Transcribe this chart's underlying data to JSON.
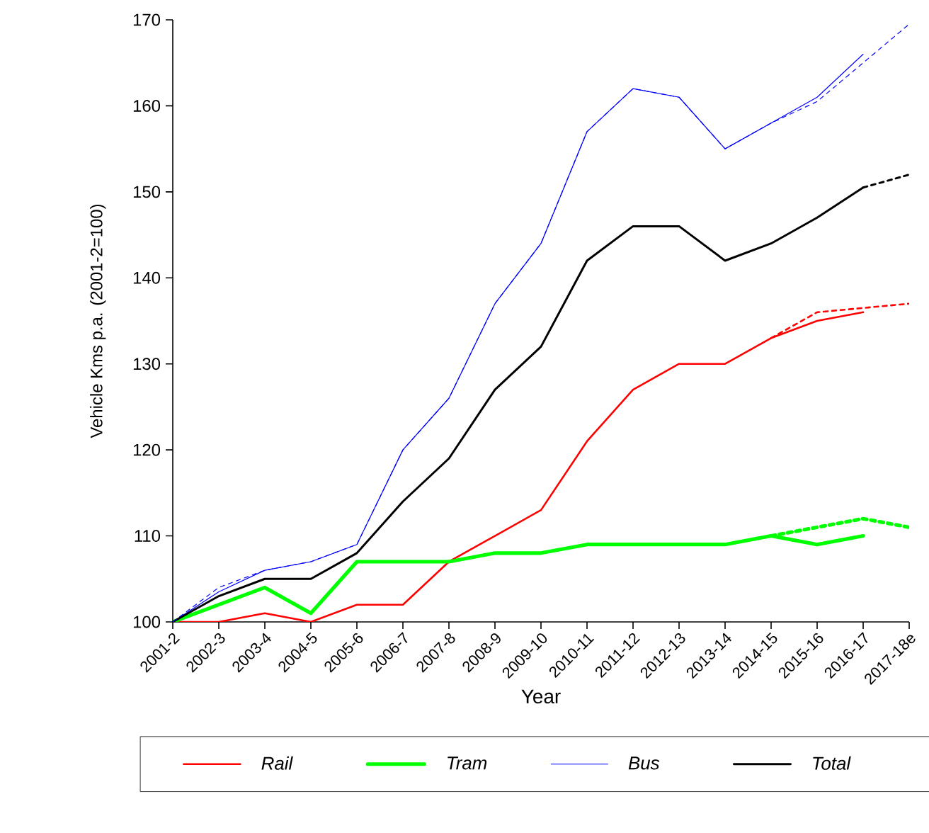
{
  "chart_data": {
    "type": "line",
    "xlabel": "Year",
    "ylabel": "Vehicle Kms p.a. (2001-2=100)",
    "categories": [
      "2001-2",
      "2002-3",
      "2003-4",
      "2004-5",
      "2005-6",
      "2006-7",
      "2007-8",
      "2008-9",
      "2009-10",
      "2010-11",
      "2011-12",
      "2012-13",
      "2013-14",
      "2014-15",
      "2015-16",
      "2016-17",
      "2017-18e"
    ],
    "ylim": [
      100,
      170
    ],
    "yticks": [
      100,
      110,
      120,
      130,
      140,
      150,
      160,
      170
    ],
    "grid": false,
    "legend": "bottom",
    "marker": "none",
    "series": [
      {
        "name": "Rail",
        "color": "#ff0000",
        "line_style": "solid",
        "values": [
          100,
          100,
          101,
          100,
          102,
          102,
          107,
          110,
          113,
          121,
          127,
          130,
          130,
          133,
          135,
          136,
          null
        ]
      },
      {
        "name": "Tram",
        "color": "#00ff00",
        "line_style": "solid",
        "values": [
          100,
          102,
          104,
          101,
          107,
          107,
          107,
          108,
          108,
          109,
          109,
          109,
          109,
          110,
          109,
          110,
          null
        ]
      },
      {
        "name": "Bus",
        "color": "#0000ff",
        "line_style": "solid",
        "values": [
          100,
          103.5,
          106,
          107,
          109,
          120,
          126,
          137,
          144,
          157,
          162,
          161,
          155,
          158,
          161,
          166,
          null
        ]
      },
      {
        "name": "Total",
        "color": "#000000",
        "line_style": "solid",
        "values": [
          100,
          103,
          105,
          105,
          108,
          114,
          119,
          127,
          132,
          142,
          146,
          146,
          142,
          144,
          147,
          150.5,
          null
        ]
      },
      {
        "color": "#ff0000",
        "line_style": "dashed",
        "values": [
          null,
          null,
          null,
          null,
          null,
          null,
          null,
          null,
          null,
          null,
          null,
          null,
          null,
          133,
          136,
          136.5,
          137
        ]
      },
      {
        "color": "#00ff00",
        "line_style": "dashed",
        "values": [
          null,
          null,
          null,
          null,
          null,
          null,
          null,
          null,
          null,
          null,
          null,
          null,
          null,
          110,
          111,
          112,
          111
        ]
      },
      {
        "color": "#0000ff",
        "line_style": "dashed",
        "values": [
          100,
          104,
          106,
          107,
          109,
          120,
          126,
          137,
          144,
          157,
          162,
          161,
          155,
          158,
          160.5,
          165,
          169.5
        ]
      },
      {
        "color": "#000000",
        "line_style": "dashed",
        "values": [
          null,
          null,
          null,
          null,
          null,
          null,
          null,
          null,
          null,
          null,
          null,
          null,
          null,
          null,
          null,
          150.5,
          152
        ]
      }
    ]
  }
}
